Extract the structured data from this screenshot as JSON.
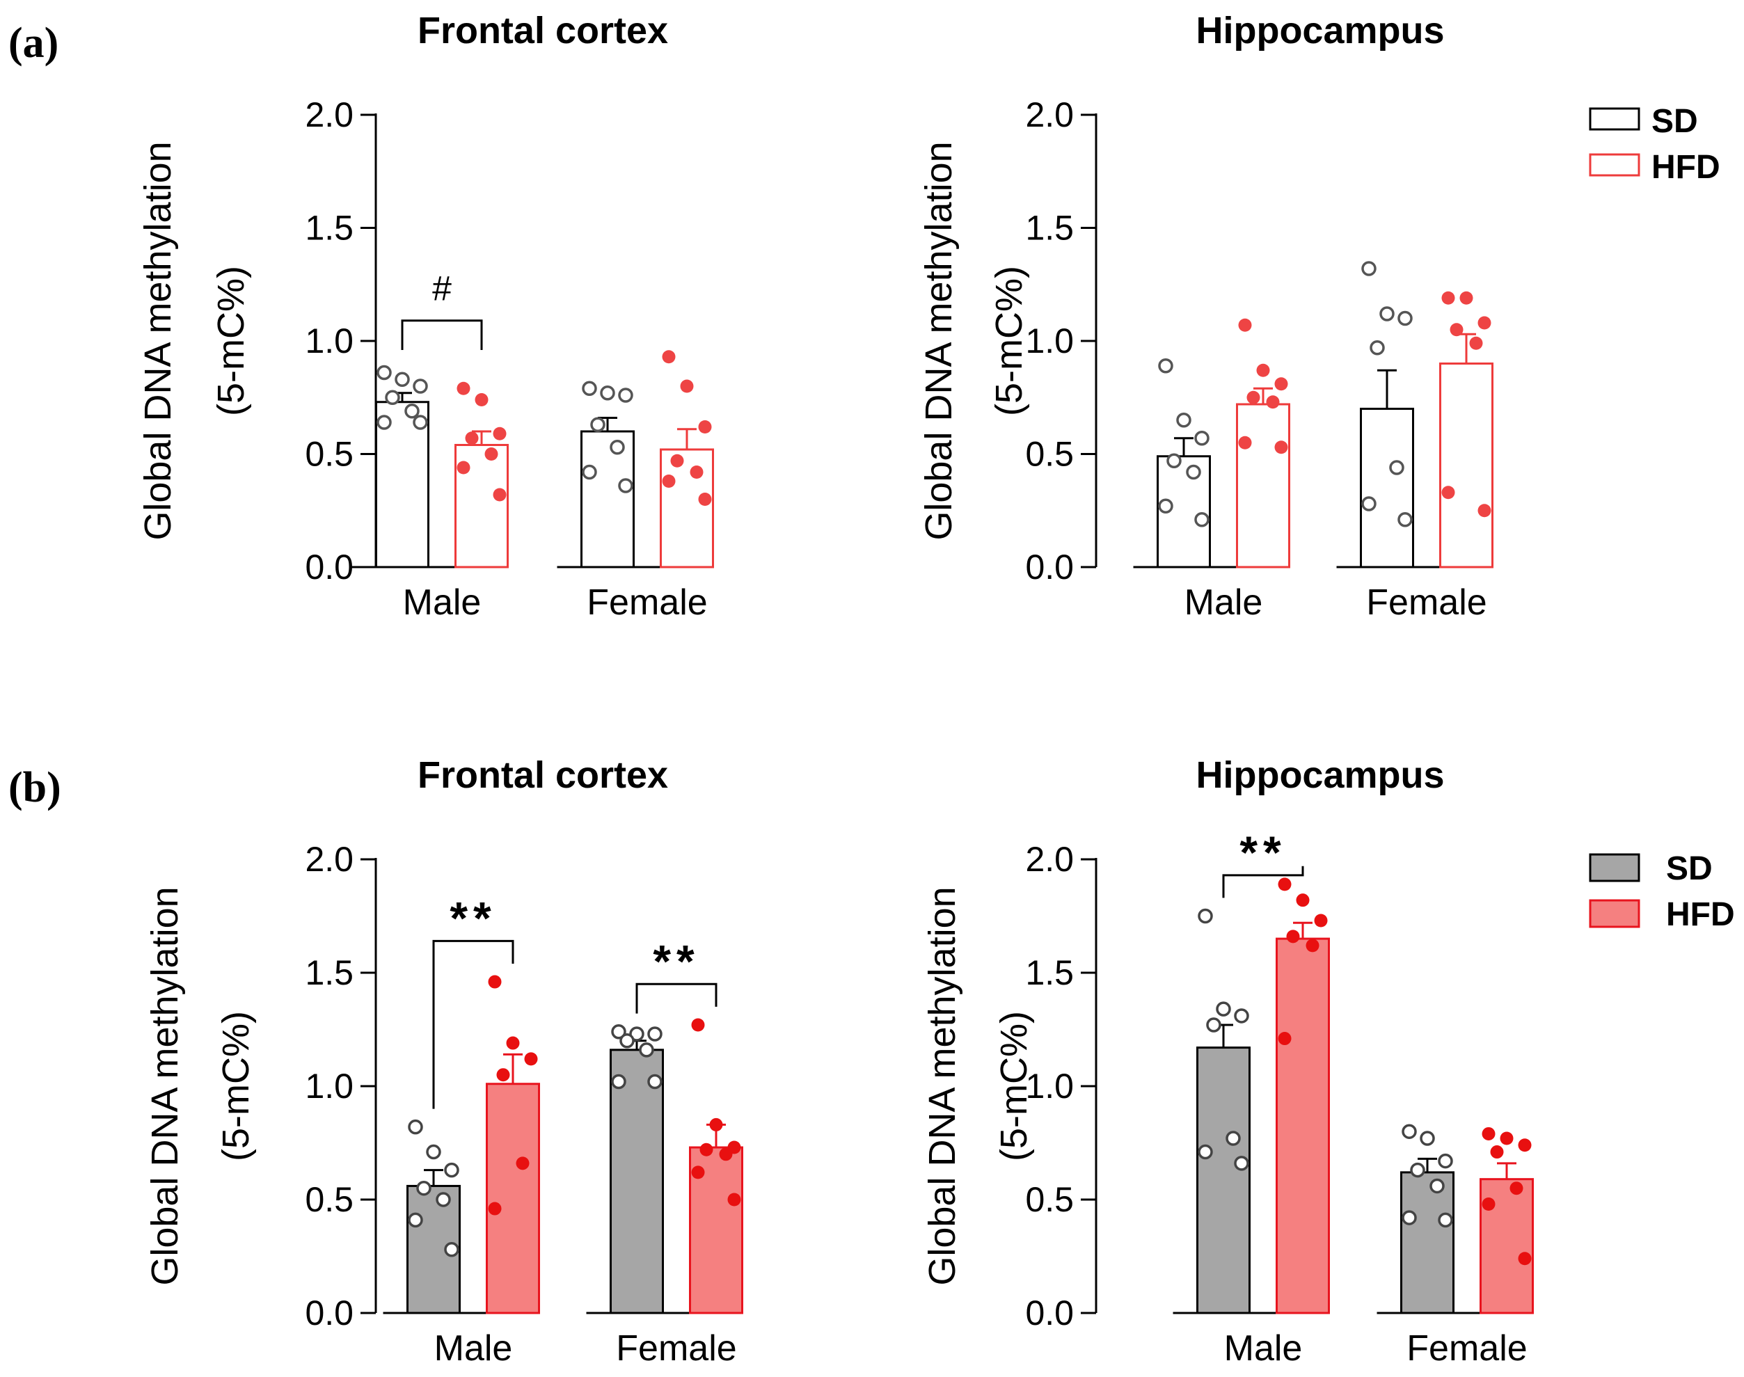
{
  "panel_labels": {
    "a": "(a)",
    "b": "(b)"
  },
  "colors": {
    "sd_open": "#000000",
    "hfd_open": "#ee3b3b",
    "sd_fill": "#a6a6a6",
    "hfd_fill": "#f58080",
    "hfd_edge": "#e8141e",
    "sd_dot": "#a6a6a6",
    "hfd_dot_a": "#ee4444",
    "hfd_dot_b": "#e81010"
  },
  "legends": {
    "a": {
      "sd": "SD",
      "hfd": "HFD"
    },
    "b": {
      "sd": "SD",
      "hfd": "HFD"
    }
  },
  "chart_data": [
    {
      "id": "a-frontal",
      "type": "bar",
      "panel": "a",
      "title": "Frontal cortex",
      "ylabel_line1": "Global DNA methylation",
      "ylabel_line2": "(5-mC%)",
      "ylim": [
        0,
        2.0
      ],
      "yticks": [
        "0.0",
        "0.5",
        "1.0",
        "1.5",
        "2.0"
      ],
      "categories": [
        "Male",
        "Female"
      ],
      "style": "open",
      "series": [
        {
          "name": "SD",
          "values": [
            0.73,
            0.6
          ],
          "sem": [
            0.04,
            0.06
          ],
          "points": [
            [
              0.86,
              0.83,
              0.8,
              0.75,
              0.69,
              0.64,
              0.64
            ],
            [
              0.79,
              0.77,
              0.76,
              0.63,
              0.53,
              0.42,
              0.36
            ]
          ]
        },
        {
          "name": "HFD",
          "values": [
            0.54,
            0.52
          ],
          "sem": [
            0.06,
            0.09
          ],
          "points": [
            [
              0.79,
              0.74,
              0.59,
              0.57,
              0.5,
              0.44,
              0.32
            ],
            [
              0.93,
              0.8,
              0.62,
              0.47,
              0.42,
              0.38,
              0.3
            ]
          ]
        }
      ],
      "annotations": [
        {
          "category": "Male",
          "text": "#"
        }
      ]
    },
    {
      "id": "a-hippocampus",
      "type": "bar",
      "panel": "a",
      "title": "Hippocampus",
      "ylabel_line1": "Global DNA methylation",
      "ylabel_line2": "(5-mC%)",
      "ylim": [
        0,
        2.0
      ],
      "yticks": [
        "0.0",
        "0.5",
        "1.0",
        "1.5",
        "2.0"
      ],
      "categories": [
        "Male",
        "Female"
      ],
      "style": "open",
      "series": [
        {
          "name": "SD",
          "values": [
            0.49,
            0.7
          ],
          "sem": [
            0.08,
            0.17
          ],
          "points": [
            [
              0.89,
              0.65,
              0.57,
              0.47,
              0.42,
              0.27,
              0.21
            ],
            [
              1.32,
              1.12,
              1.1,
              0.97,
              0.44,
              0.28,
              0.21
            ]
          ]
        },
        {
          "name": "HFD",
          "values": [
            0.72,
            0.9
          ],
          "sem": [
            0.07,
            0.13
          ],
          "points": [
            [
              1.07,
              0.87,
              0.81,
              0.75,
              0.73,
              0.55,
              0.53
            ],
            [
              1.19,
              1.19,
              1.08,
              1.05,
              0.99,
              0.33,
              0.25
            ]
          ]
        }
      ],
      "annotations": []
    },
    {
      "id": "b-frontal",
      "type": "bar",
      "panel": "b",
      "title": "Frontal cortex",
      "ylabel_line1": "Global DNA methylation",
      "ylabel_line2": "(5-mC%)",
      "ylim": [
        0,
        2.0
      ],
      "yticks": [
        "0.0",
        "0.5",
        "1.0",
        "1.5",
        "2.0"
      ],
      "categories": [
        "Male",
        "Female"
      ],
      "style": "filled",
      "series": [
        {
          "name": "SD",
          "values": [
            0.56,
            1.16
          ],
          "sem": [
            0.07,
            0.04
          ],
          "points": [
            [
              0.82,
              0.71,
              0.63,
              0.55,
              0.5,
              0.41,
              0.28
            ],
            [
              1.24,
              1.23,
              1.23,
              1.2,
              1.16,
              1.02,
              1.02
            ]
          ]
        },
        {
          "name": "HFD",
          "values": [
            1.01,
            0.73
          ],
          "sem": [
            0.13,
            0.1
          ],
          "points": [
            [
              1.46,
              1.19,
              1.12,
              1.05,
              0.66,
              0.46
            ],
            [
              1.27,
              0.83,
              0.73,
              0.72,
              0.7,
              0.62,
              0.5
            ]
          ]
        }
      ],
      "annotations": [
        {
          "category": "Male",
          "text": "**"
        },
        {
          "category": "Female",
          "text": "**"
        }
      ]
    },
    {
      "id": "b-hippocampus",
      "type": "bar",
      "panel": "b",
      "title": "Hippocampus",
      "ylabel_line1": "Global DNA methylation",
      "ylabel_line2": "(5-mC%)",
      "ylim": [
        0,
        2.0
      ],
      "yticks": [
        "0.0",
        "0.5",
        "1.0",
        "1.5",
        "2.0"
      ],
      "categories": [
        "Male",
        "Female"
      ],
      "style": "filled",
      "series": [
        {
          "name": "SD",
          "values": [
            1.17,
            0.62
          ],
          "sem": [
            0.1,
            0.06
          ],
          "points": [
            [
              1.75,
              1.34,
              1.31,
              1.27,
              0.77,
              0.71,
              0.66
            ],
            [
              0.8,
              0.77,
              0.67,
              0.63,
              0.56,
              0.42,
              0.41
            ]
          ]
        },
        {
          "name": "HFD",
          "values": [
            1.65,
            0.59
          ],
          "sem": [
            0.07,
            0.07
          ],
          "points": [
            [
              1.89,
              1.82,
              1.73,
              1.66,
              1.62,
              1.21
            ],
            [
              0.79,
              0.77,
              0.74,
              0.71,
              0.55,
              0.48,
              0.24
            ]
          ]
        }
      ],
      "annotations": [
        {
          "category": "Male",
          "text": "**"
        }
      ]
    }
  ]
}
